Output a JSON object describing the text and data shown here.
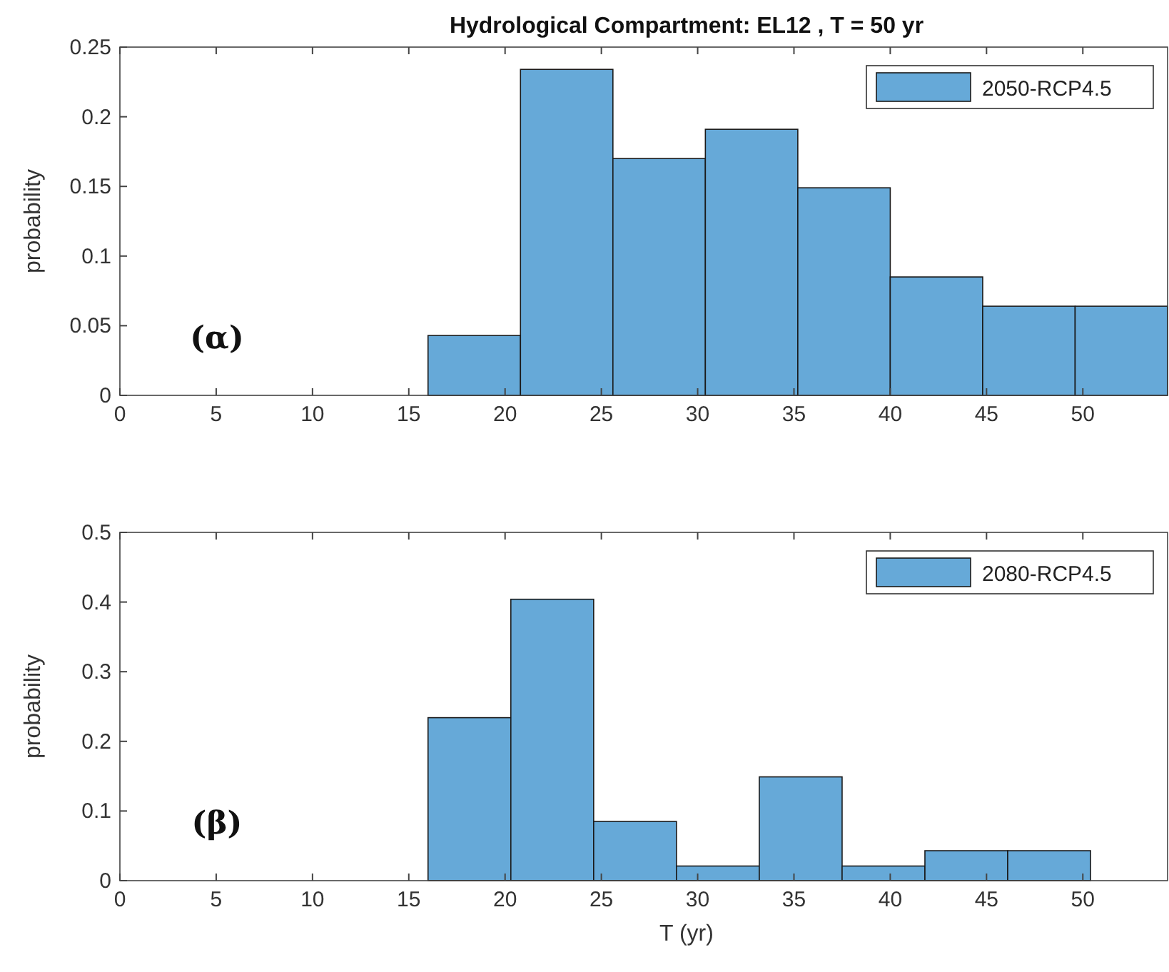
{
  "chart_data": [
    {
      "type": "histogram",
      "title": "Hydrological Compartment: EL12 ,  T = 50 yr",
      "ylabel": "probability",
      "annotations": [
        "(α)"
      ],
      "bins": [
        16,
        20.8,
        25.6,
        30.4,
        35.2,
        40,
        44.8,
        49.6,
        54.4
      ],
      "series": [
        {
          "name": "2050-RCP4.5",
          "color": "#66a9d8",
          "values": [
            0.043,
            0.234,
            0.17,
            0.191,
            0.149,
            0.085,
            0.064,
            0.064
          ]
        }
      ],
      "xlim": [
        0,
        54.4
      ],
      "xticks": [
        0,
        5,
        10,
        15,
        20,
        25,
        30,
        35,
        40,
        45,
        50
      ],
      "ylim": [
        0,
        0.25
      ],
      "yticks": [
        0,
        0.05,
        0.1,
        0.15,
        0.2,
        0.25
      ],
      "legend": "top right",
      "grid": false
    },
    {
      "type": "histogram",
      "xlabel": "T (yr)",
      "ylabel": "probability",
      "annotations": [
        "(β)"
      ],
      "bins": [
        16,
        20.3,
        24.6,
        28.9,
        33.2,
        37.5,
        41.8,
        46.1,
        50.4
      ],
      "series": [
        {
          "name": "2080-RCP4.5",
          "color": "#66a9d8",
          "values": [
            0.234,
            0.404,
            0.085,
            0.021,
            0.149,
            0.021,
            0.043,
            0.043
          ]
        }
      ],
      "xlim": [
        0,
        54.4
      ],
      "xticks": [
        0,
        5,
        10,
        15,
        20,
        25,
        30,
        35,
        40,
        45,
        50
      ],
      "ylim": [
        0,
        0.5
      ],
      "yticks": [
        0,
        0.1,
        0.2,
        0.3,
        0.4,
        0.5
      ],
      "legend": "top right",
      "grid": false
    }
  ]
}
